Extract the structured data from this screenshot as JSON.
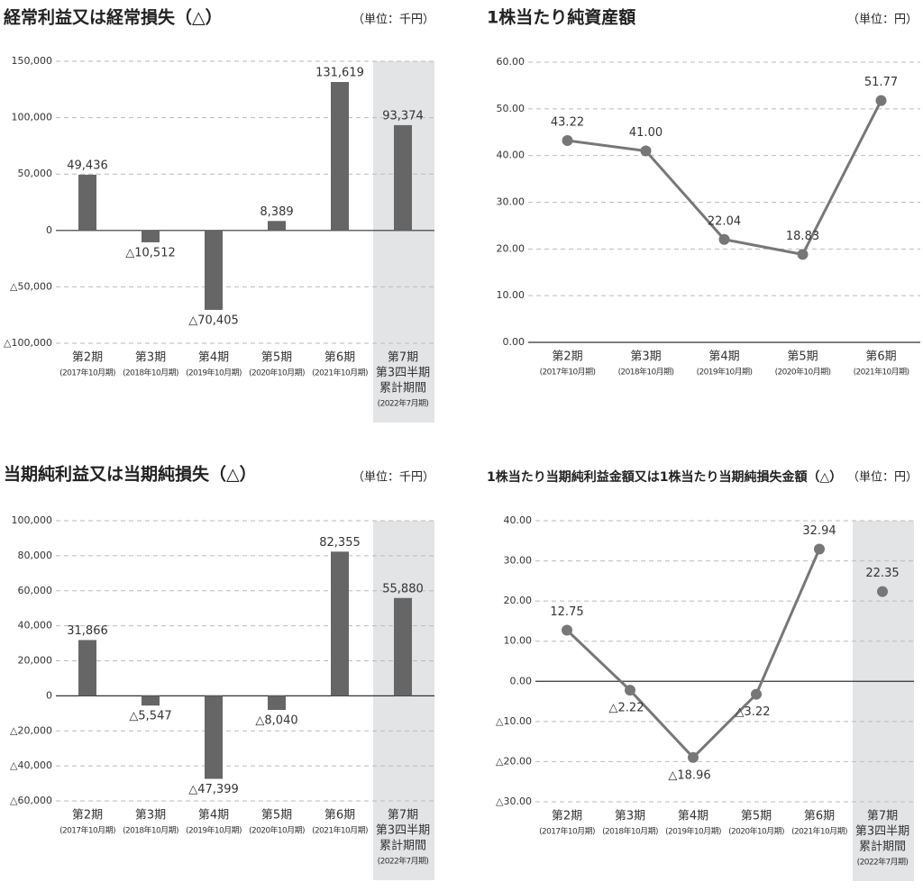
{
  "chart_data": [
    {
      "type": "bar",
      "title": "経常利益又は経常損失（△）",
      "unit": "（単位：千円）",
      "categories": [
        [
          "第2期",
          "(2017年10月期)"
        ],
        [
          "第3期",
          "(2018年10月期)"
        ],
        [
          "第4期",
          "(2019年10月期)"
        ],
        [
          "第5期",
          "(2020年10月期)"
        ],
        [
          "第6期",
          "(2021年10月期)"
        ],
        [
          "第7期",
          "第3四半期",
          "累計期間",
          "(2022年7月期)"
        ]
      ],
      "values": [
        49436,
        -10512,
        -70405,
        8389,
        131619,
        93374
      ],
      "value_labels": [
        "49,436",
        "△10,512",
        "△70,405",
        "8,389",
        "131,619",
        "93,374"
      ],
      "color": "#666666",
      "shaded_categories": [
        5
      ],
      "ylim": [
        -100000,
        150000
      ],
      "yticks": [
        {
          "value": -100000,
          "label": "△100,000"
        },
        {
          "value": -50000,
          "label": "△50,000"
        },
        0,
        {
          "value": 50000,
          "label": "50,000"
        },
        {
          "value": 100000,
          "label": "100,000"
        },
        {
          "value": 150000,
          "label": "150,000"
        }
      ],
      "grid": true
    },
    {
      "type": "line",
      "title": "1株当たり純資産額",
      "unit": "（単位：円）",
      "categories": [
        [
          "第2期",
          "(2017年10月期)"
        ],
        [
          "第3期",
          "(2018年10月期)"
        ],
        [
          "第4期",
          "(2019年10月期)"
        ],
        [
          "第5期",
          "(2020年10月期)"
        ],
        [
          "第6期",
          "(2021年10月期)"
        ]
      ],
      "series": [
        {
          "color": "#777777",
          "values": [
            43.22,
            41.0,
            22.04,
            18.83,
            51.77
          ],
          "value_labels": [
            "43.22",
            "41.00",
            "22.04",
            "18.83",
            "51.77"
          ]
        }
      ],
      "shaded_categories": [],
      "ylim": [
        0,
        60
      ],
      "yticks": [
        {
          "value": 0,
          "label": "0.00"
        },
        {
          "value": 10,
          "label": "10.00"
        },
        {
          "value": 20,
          "label": "20.00"
        },
        {
          "value": 30,
          "label": "30.00"
        },
        {
          "value": 40,
          "label": "40.00"
        },
        {
          "value": 50,
          "label": "50.00"
        },
        {
          "value": 60,
          "label": "60.00"
        }
      ],
      "grid": true
    },
    {
      "type": "bar",
      "title": "当期純利益又は当期純損失（△）",
      "unit": "（単位：千円）",
      "categories": [
        [
          "第2期",
          "(2017年10月期)"
        ],
        [
          "第3期",
          "(2018年10月期)"
        ],
        [
          "第4期",
          "(2019年10月期)"
        ],
        [
          "第5期",
          "(2020年10月期)"
        ],
        [
          "第6期",
          "(2021年10月期)"
        ],
        [
          "第7期",
          "第3四半期",
          "累計期間",
          "(2022年7月期)"
        ]
      ],
      "values": [
        31866,
        -5547,
        -47399,
        -8040,
        82355,
        55880
      ],
      "value_labels": [
        "31,866",
        "△5,547",
        "△47,399",
        "△8,040",
        "82,355",
        "55,880"
      ],
      "color": "#666666",
      "shaded_categories": [
        5
      ],
      "ylim": [
        -60000,
        100000
      ],
      "yticks": [
        {
          "value": -60000,
          "label": "△60,000"
        },
        {
          "value": -40000,
          "label": "△40,000"
        },
        {
          "value": -20000,
          "label": "△20,000"
        },
        0,
        {
          "value": 20000,
          "label": "20,000"
        },
        {
          "value": 40000,
          "label": "40,000"
        },
        {
          "value": 60000,
          "label": "60,000"
        },
        {
          "value": 80000,
          "label": "80,000"
        },
        {
          "value": 100000,
          "label": "100,000"
        }
      ],
      "grid": true
    },
    {
      "type": "line",
      "title": "1株当たり当期純利益金額又は1株当たり当期純損失金額（△）",
      "unit": "（単位：円）",
      "categories": [
        [
          "第2期",
          "(2017年10月期)"
        ],
        [
          "第3期",
          "(2018年10月期)"
        ],
        [
          "第4期",
          "(2019年10月期)"
        ],
        [
          "第5期",
          "(2020年10月期)"
        ],
        [
          "第6期",
          "(2021年10月期)"
        ],
        [
          "第7期",
          "第3四半期",
          "累計期間",
          "(2022年7月期)"
        ]
      ],
      "series": [
        {
          "color": "#777777",
          "values": [
            12.75,
            -2.22,
            -18.96,
            -3.22,
            32.94,
            null
          ],
          "value_labels": [
            "12.75",
            "△2.22",
            "△18.96",
            "△3.22",
            "32.94",
            null
          ]
        },
        {
          "color": "#777777",
          "values": [
            null,
            null,
            null,
            null,
            null,
            22.35
          ],
          "value_labels": [
            null,
            null,
            null,
            null,
            null,
            "22.35"
          ]
        }
      ],
      "shaded_categories": [
        5
      ],
      "ylim": [
        -30,
        40
      ],
      "yticks": [
        {
          "value": -30,
          "label": "△30.00"
        },
        {
          "value": -20,
          "label": "△20.00"
        },
        {
          "value": -10,
          "label": "△10.00"
        },
        {
          "value": 0,
          "label": "0.00"
        },
        {
          "value": 10,
          "label": "10.00"
        },
        {
          "value": 20,
          "label": "20.00"
        },
        {
          "value": 30,
          "label": "30.00"
        },
        {
          "value": 40,
          "label": "40.00"
        }
      ],
      "grid": true
    }
  ]
}
